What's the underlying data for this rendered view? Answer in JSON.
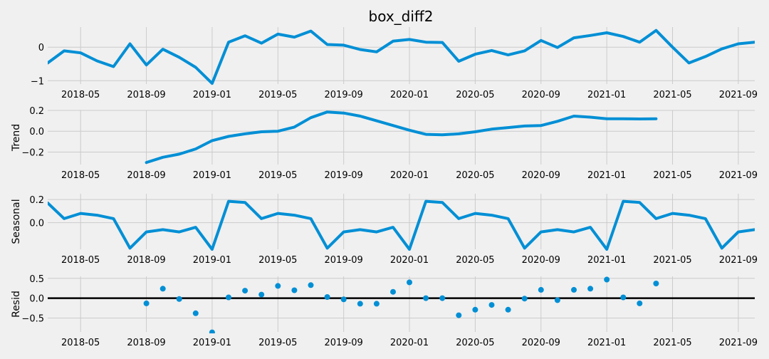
{
  "chart_data": {
    "type": "line",
    "title": "box_diff2",
    "x_dates": [
      "2018-03",
      "2018-04",
      "2018-05",
      "2018-06",
      "2018-07",
      "2018-08",
      "2018-09",
      "2018-10",
      "2018-11",
      "2018-12",
      "2019-01",
      "2019-02",
      "2019-03",
      "2019-04",
      "2019-05",
      "2019-06",
      "2019-07",
      "2019-08",
      "2019-09",
      "2019-10",
      "2019-11",
      "2019-12",
      "2020-01",
      "2020-02",
      "2020-03",
      "2020-04",
      "2020-05",
      "2020-06",
      "2020-07",
      "2020-08",
      "2020-09",
      "2020-10",
      "2020-11",
      "2020-12",
      "2021-01",
      "2021-02",
      "2021-03",
      "2021-04",
      "2021-05",
      "2021-06",
      "2021-07",
      "2021-08",
      "2021-09",
      "2021-10"
    ],
    "x_ticks": [
      "2018-05",
      "2018-09",
      "2019-01",
      "2019-05",
      "2019-09",
      "2020-01",
      "2020-05",
      "2020-09",
      "2021-01",
      "2021-05",
      "2021-09"
    ],
    "xlim": [
      "2018-03",
      "2021-10"
    ],
    "panels": [
      {
        "name": "observed",
        "ylabel": "",
        "kind": "line",
        "ylim": [
          -1.1,
          0.6
        ],
        "yticks": [
          0,
          -1
        ],
        "ytick_labels": [
          "0",
          "−1"
        ],
        "values": [
          -0.47,
          -0.11,
          -0.17,
          -0.41,
          -0.58,
          0.1,
          -0.53,
          -0.06,
          -0.3,
          -0.6,
          -1.08,
          0.15,
          0.34,
          0.12,
          0.39,
          0.3,
          0.48,
          0.08,
          0.06,
          -0.07,
          -0.14,
          0.18,
          0.23,
          0.15,
          0.14,
          -0.42,
          -0.21,
          -0.1,
          -0.23,
          -0.11,
          0.2,
          -0.01,
          0.28,
          0.35,
          0.43,
          0.32,
          0.15,
          0.5,
          0.0,
          -0.47,
          -0.28,
          -0.05,
          0.1,
          0.15
        ]
      },
      {
        "name": "trend",
        "ylabel": "Trend",
        "kind": "line",
        "ylim": [
          -0.32,
          0.2
        ],
        "yticks": [
          0.2,
          0.0,
          -0.2
        ],
        "ytick_labels": [
          "0.2",
          "0.0",
          "−0.2"
        ],
        "values": [
          null,
          null,
          null,
          null,
          null,
          null,
          -0.3,
          -0.25,
          -0.22,
          -0.17,
          -0.09,
          -0.05,
          -0.025,
          -0.005,
          0.0,
          0.04,
          0.13,
          0.185,
          0.175,
          0.145,
          0.1,
          0.055,
          0.01,
          -0.03,
          -0.035,
          -0.025,
          -0.005,
          0.02,
          0.035,
          0.05,
          0.055,
          0.095,
          0.145,
          0.135,
          0.12,
          0.12,
          0.118,
          0.12,
          null,
          null,
          null,
          null,
          null,
          null
        ]
      },
      {
        "name": "seasonal",
        "ylabel": "Seasonal",
        "kind": "line",
        "ylim": [
          -0.23,
          0.25
        ],
        "yticks": [
          0.2,
          0.0
        ],
        "ytick_labels": [
          "0.2",
          "0.0"
        ],
        "values": [
          0.17,
          0.035,
          0.08,
          0.065,
          0.035,
          -0.22,
          -0.08,
          -0.06,
          -0.08,
          -0.04,
          -0.23,
          0.185,
          0.175,
          0.035,
          0.08,
          0.065,
          0.035,
          -0.22,
          -0.08,
          -0.06,
          -0.08,
          -0.04,
          -0.23,
          0.185,
          0.175,
          0.035,
          0.08,
          0.065,
          0.035,
          -0.22,
          -0.08,
          -0.06,
          -0.08,
          -0.04,
          -0.23,
          0.185,
          0.175,
          0.035,
          0.08,
          0.065,
          0.035,
          -0.22,
          -0.08,
          -0.06
        ]
      },
      {
        "name": "resid",
        "ylabel": "Resid",
        "kind": "scatter",
        "ylim": [
          -0.85,
          0.55
        ],
        "yticks": [
          0.5,
          0.0,
          -0.5
        ],
        "ytick_labels": [
          "0.5",
          "0.0",
          "−0.5"
        ],
        "values": [
          null,
          null,
          null,
          null,
          null,
          null,
          -0.13,
          0.24,
          -0.02,
          -0.38,
          -0.86,
          0.02,
          0.19,
          0.09,
          0.31,
          0.2,
          0.33,
          0.03,
          -0.03,
          -0.14,
          -0.14,
          0.16,
          0.4,
          0.0,
          0.0,
          -0.43,
          -0.29,
          -0.17,
          -0.29,
          -0.01,
          0.21,
          -0.05,
          0.21,
          0.24,
          0.47,
          0.02,
          -0.13,
          0.37,
          null,
          null,
          null,
          null,
          null,
          null
        ]
      }
    ]
  }
}
